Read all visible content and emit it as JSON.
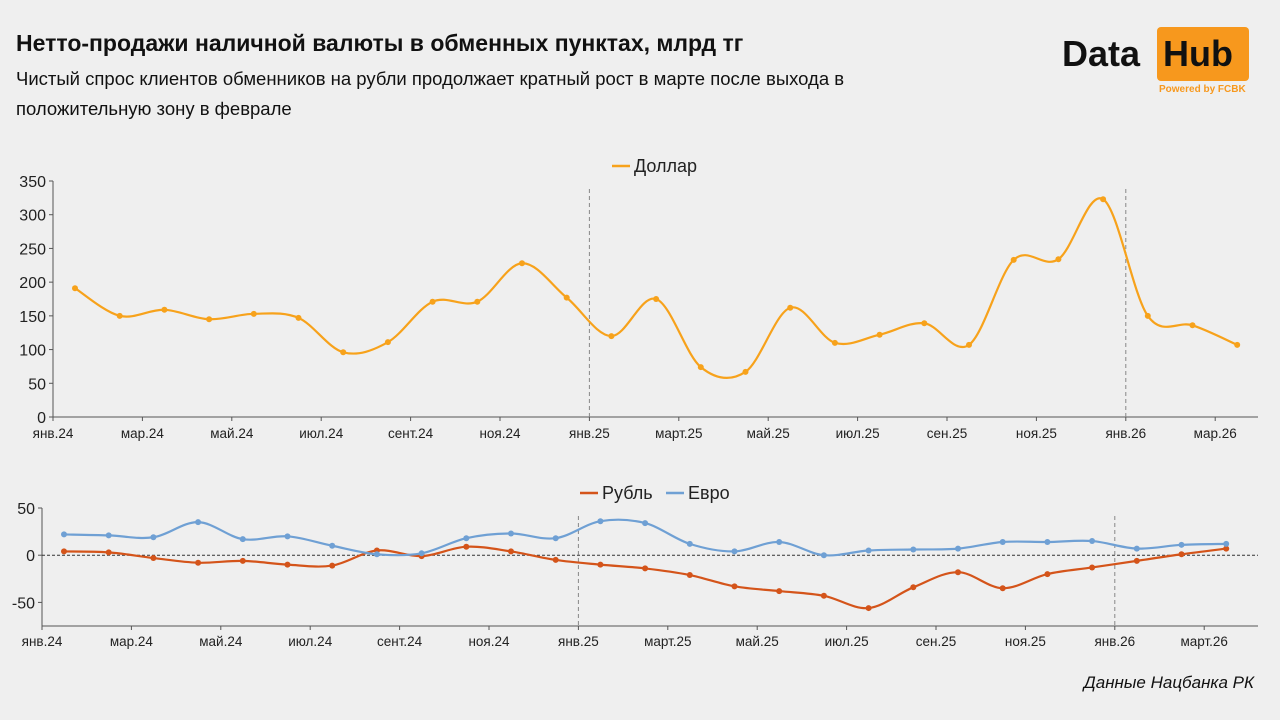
{
  "header": {
    "title": "Нетто-продажи наличной валюты в обменных пунктах, млрд тг",
    "subtitle": "Чистый спрос клиентов обменников на рубли продолжает кратный рост в марте после выхода в положительную зону в феврале"
  },
  "logo": {
    "word1": "Data",
    "word2": "Hub",
    "tagline": "Powered by FCBK"
  },
  "source": "Данные Нацбанка РК",
  "chart_data": [
    {
      "type": "line",
      "title": "",
      "legend": [
        "Доллар"
      ],
      "legend_position": "top-center",
      "colors": [
        "#f7a21b"
      ],
      "x_tick_labels": [
        "янв.24",
        "мар.24",
        "май.24",
        "июл.24",
        "сент.24",
        "ноя.24",
        "янв.25",
        "март.25",
        "май.25",
        "июл.25",
        "сен.25",
        "ноя.25",
        "янв.26",
        "мар.26"
      ],
      "yticks": [
        0,
        50,
        100,
        150,
        200,
        250,
        300,
        350
      ],
      "ylim": [
        0,
        350
      ],
      "series": [
        {
          "name": "Доллар",
          "values": [
            191,
            150,
            159,
            145,
            153,
            147,
            96,
            111,
            171,
            171,
            228,
            177,
            120,
            175,
            74,
            67,
            162,
            110,
            122,
            139,
            107,
            233,
            234,
            323,
            150,
            136,
            107
          ]
        }
      ]
    },
    {
      "type": "line",
      "title": "",
      "legend": [
        "Рубль",
        "Евро"
      ],
      "legend_position": "top-center",
      "colors": [
        "#d4541a",
        "#6fa0d4"
      ],
      "x_tick_labels": [
        "янв.24",
        "мар.24",
        "май.24",
        "июл.24",
        "сент.24",
        "ноя.24",
        "янв.25",
        "март.25",
        "май.25",
        "июл.25",
        "сен.25",
        "ноя.25",
        "янв.26",
        "март.26"
      ],
      "yticks": [
        -50,
        0,
        50
      ],
      "ylim": [
        -75,
        50
      ],
      "series": [
        {
          "name": "Рубль",
          "values": [
            4,
            3,
            -3,
            -8,
            -6,
            -10,
            -11,
            5,
            -1,
            9,
            4,
            -5,
            -10,
            -14,
            -21,
            -33,
            -38,
            -43,
            -56,
            -34,
            -18,
            -35,
            -20,
            -13,
            -6,
            1,
            7
          ]
        },
        {
          "name": "Евро",
          "values": [
            22,
            21,
            19,
            35,
            17,
            20,
            10,
            1,
            2,
            18,
            23,
            18,
            36,
            34,
            12,
            4,
            14,
            0,
            5,
            6,
            7,
            14,
            14,
            15,
            7,
            11,
            12
          ]
        }
      ]
    }
  ]
}
